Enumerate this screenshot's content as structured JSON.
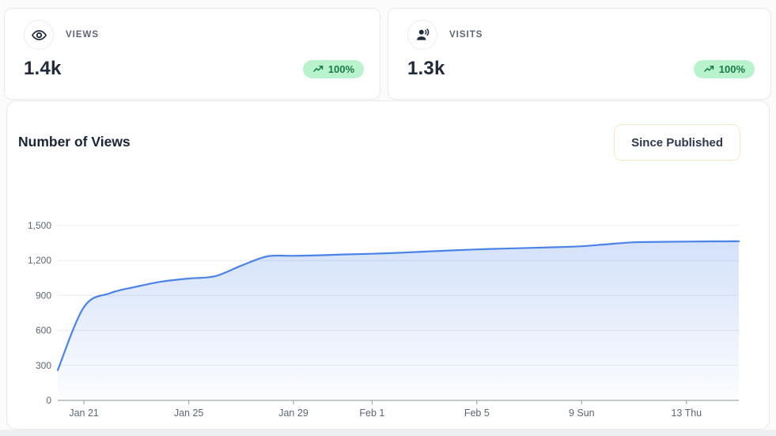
{
  "stats": [
    {
      "label": "VIEWS",
      "value": "1.4k",
      "badge": "100%",
      "icon": "eye"
    },
    {
      "label": "VISITS",
      "value": "1.3k",
      "badge": "100%",
      "icon": "visitor"
    }
  ],
  "chart_section": {
    "title": "Number of Views",
    "filter_button": "Since Published"
  },
  "colors": {
    "badge_bg": "#b9f3cd",
    "badge_text": "#177a45",
    "button_border": "#f6e6c9",
    "heading_text": "#1a2437"
  },
  "chart_data": {
    "type": "area",
    "title": "Number of Views",
    "xlabel": "",
    "ylabel": "",
    "ylim": [
      0,
      1500
    ],
    "grid": "horizontal",
    "legend": "none",
    "x": [
      "Jan 20",
      "Jan 21",
      "Jan 22",
      "Jan 23",
      "Jan 24",
      "Jan 25",
      "Jan 26",
      "Jan 27",
      "Jan 28",
      "Jan 29",
      "Jan 30",
      "Jan 31",
      "Feb 1",
      "Feb 2",
      "Feb 3",
      "Feb 4",
      "Feb 5",
      "Feb 6",
      "Feb 7",
      "Feb 8",
      "Feb 9",
      "Feb 10",
      "Feb 11",
      "Feb 12",
      "Feb 13",
      "Feb 14",
      "Feb 15"
    ],
    "values": [
      260,
      800,
      920,
      975,
      1020,
      1045,
      1065,
      1155,
      1235,
      1240,
      1245,
      1252,
      1258,
      1266,
      1276,
      1286,
      1295,
      1302,
      1308,
      1314,
      1322,
      1340,
      1356,
      1360,
      1362,
      1364,
      1365
    ],
    "y_ticks": [
      {
        "value": 0,
        "label": "0"
      },
      {
        "value": 300,
        "label": "300"
      },
      {
        "value": 600,
        "label": "600"
      },
      {
        "value": 900,
        "label": "900"
      },
      {
        "value": 1200,
        "label": "1,200"
      },
      {
        "value": 1500,
        "label": "1,500"
      }
    ],
    "x_ticks": [
      {
        "index": 1,
        "label": "Jan 21"
      },
      {
        "index": 5,
        "label": "Jan 25"
      },
      {
        "index": 9,
        "label": "Jan 29"
      },
      {
        "index": 12,
        "label": "Feb 1"
      },
      {
        "index": 16,
        "label": "Feb 5"
      },
      {
        "index": 20,
        "label": "9 Sun"
      },
      {
        "index": 24,
        "label": "13 Thu"
      }
    ],
    "line_color": "#4c83e8",
    "area_color": "#4c83e8",
    "area_opacity_top": 0.24,
    "area_opacity_bottom": 0.02,
    "grid_color": "#e9ebef",
    "axis_color": "#a3a8af",
    "label_color": "#5c6674"
  }
}
